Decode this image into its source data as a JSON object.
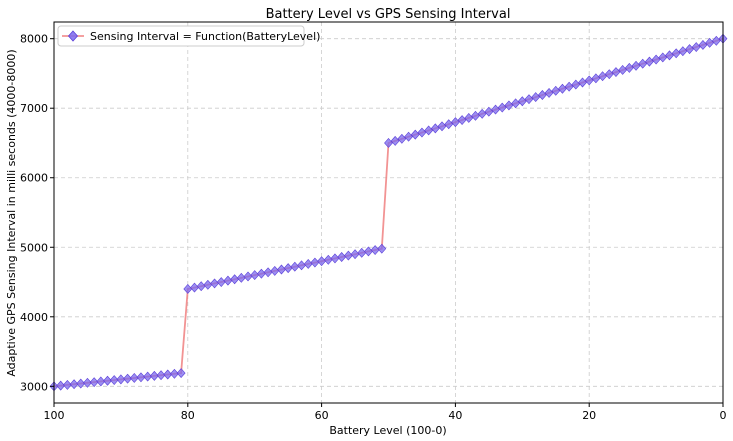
{
  "chart_data": {
    "type": "line",
    "title": "Battery Level vs GPS Sensing Interval",
    "xlabel": "Battery Level (100-0)",
    "ylabel": "Adaptive GPS Sensing Interval in milli seconds (4000-8000)",
    "xlim": [
      100,
      0
    ],
    "ylim": [
      2760,
      8240
    ],
    "x_ticks": [
      100,
      80,
      60,
      40,
      20,
      0
    ],
    "y_ticks": [
      3000,
      4000,
      5000,
      6000,
      7000,
      8000
    ],
    "grid": true,
    "legend_position": "top-left",
    "colors": {
      "line": "#f08080",
      "marker": "#7b68ee",
      "marker_edge": "#5a3fd8",
      "grid": "#cccccc"
    },
    "series": [
      {
        "name": "Sensing Interval = Function(BatteryLevel)",
        "marker": "diamond",
        "segments": [
          {
            "x_from": 100,
            "x_to": 81,
            "y_from": 3000,
            "y_to": 3190
          },
          {
            "x_from": 80,
            "x_to": 51,
            "y_from": 4400,
            "y_to": 4980
          },
          {
            "x_from": 50,
            "x_to": 0,
            "y_from": 6500,
            "y_to": 8000
          }
        ]
      }
    ]
  }
}
